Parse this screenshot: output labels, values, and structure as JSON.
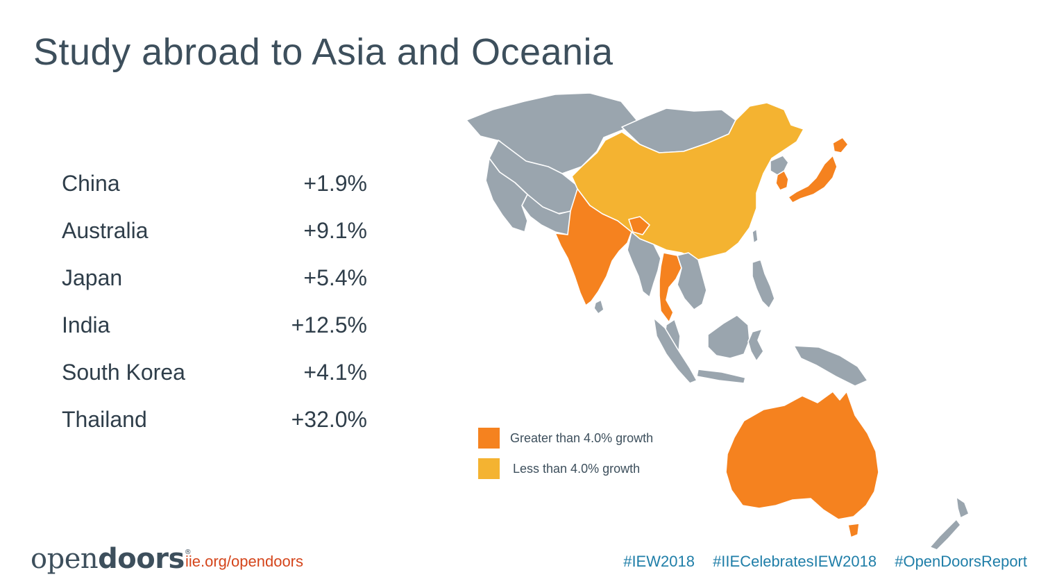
{
  "title": "Study abroad to Asia and Oceania",
  "stats": [
    {
      "country": "China",
      "value": "+1.9%"
    },
    {
      "country": "Australia",
      "value": "+9.1%"
    },
    {
      "country": "Japan",
      "value": "+5.4%"
    },
    {
      "country": "India",
      "value": "+12.5%"
    },
    {
      "country": "South Korea",
      "value": "+4.1%"
    },
    {
      "country": "Thailand",
      "value": "+32.0%"
    }
  ],
  "legend": {
    "high": {
      "label": "Greater than 4.0% growth",
      "color": "#f5821f"
    },
    "low": {
      "label": "Less than 4.0% growth",
      "color": "#f4b331"
    }
  },
  "map_colors": {
    "other": "#9aa5ae",
    "high": "#f5821f",
    "low": "#f4b331",
    "border": "#ffffff"
  },
  "footer": {
    "logo_light": "open",
    "logo_bold": "doors",
    "logo_mark": "®",
    "url": "iie.org/opendoors",
    "hashtags": [
      "#IEW2018",
      "#IIECelebratesIEW2018",
      "#OpenDoorsReport"
    ]
  }
}
